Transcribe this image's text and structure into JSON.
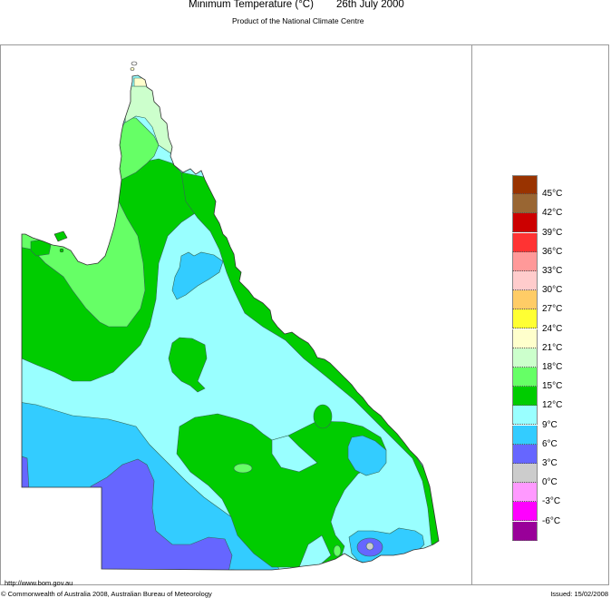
{
  "header": {
    "title": "Minimum Temperature (°C)",
    "date": "26th July 2000",
    "subtitle": "Product of the National Climate Centre"
  },
  "map": {
    "region": "Queensland",
    "colors": {
      "t21_24": "#ffffcc",
      "t18_21": "#ccffcc",
      "t15_18": "#66ff66",
      "t12_15": "#00cc00",
      "t9_12": "#99ffff",
      "t6_9": "#33ccff",
      "t3_6": "#6666ff",
      "t0_3": "#cccccc"
    }
  },
  "legend": {
    "swatches": [
      {
        "color": "#993300",
        "label": "45°C"
      },
      {
        "color": "#996633",
        "label": "42°C"
      },
      {
        "color": "#cc0000",
        "label": "39°C"
      },
      {
        "color": "#ff3333",
        "label": "36°C"
      },
      {
        "color": "#ff9999",
        "label": "33°C"
      },
      {
        "color": "#ffcccc",
        "label": "30°C"
      },
      {
        "color": "#ffcc66",
        "label": "27°C"
      },
      {
        "color": "#ffff33",
        "label": "24°C"
      },
      {
        "color": "#ffffcc",
        "label": "21°C"
      },
      {
        "color": "#ccffcc",
        "label": "18°C"
      },
      {
        "color": "#66ff66",
        "label": "15°C"
      },
      {
        "color": "#00cc00",
        "label": "12°C"
      },
      {
        "color": "#99ffff",
        "label": "9°C"
      },
      {
        "color": "#33ccff",
        "label": "6°C"
      },
      {
        "color": "#6666ff",
        "label": "3°C"
      },
      {
        "color": "#cccccc",
        "label": "0°C"
      },
      {
        "color": "#ff99ff",
        "label": "-3°C"
      },
      {
        "color": "#ff00ff",
        "label": "-6°C"
      },
      {
        "color": "#990099",
        "label": ""
      }
    ]
  },
  "footer": {
    "url": "http://www.bom.gov.au",
    "copyright": "© Commonwealth of Australia 2008, Australian Bureau of Meteorology",
    "issued": "Issued: 15/02/2008"
  }
}
